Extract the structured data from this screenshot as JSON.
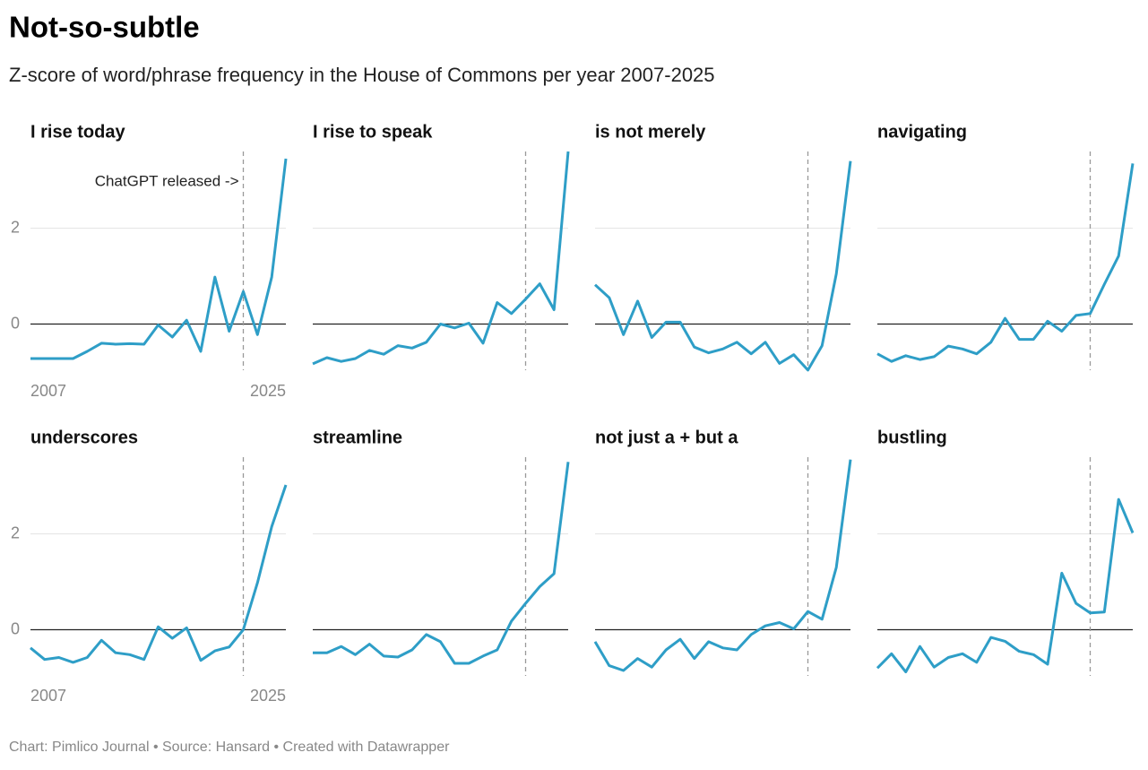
{
  "title": "Not-so-subtle",
  "subtitle": "Z-score of word/phrase frequency in the House of Commons per year 2007-2025",
  "footer": "Chart: Pimlico Journal • Source: Hansard • Created with Datawrapper",
  "chart_data": [
    {
      "type": "line",
      "title": "I rise today",
      "annotation": "ChatGPT released ->",
      "vline": 2022,
      "color": "#2e9ec7",
      "x": [
        2007,
        2008,
        2009,
        2010,
        2011,
        2012,
        2013,
        2014,
        2015,
        2016,
        2017,
        2018,
        2019,
        2020,
        2021,
        2022,
        2023,
        2024,
        2025
      ],
      "values": [
        -0.72,
        -0.72,
        -0.72,
        -0.72,
        -0.57,
        -0.4,
        -0.42,
        -0.41,
        -0.42,
        -0.02,
        -0.27,
        0.08,
        -0.57,
        0.98,
        -0.15,
        0.68,
        -0.22,
        0.98,
        3.45
      ],
      "xlim": [
        2007,
        2025
      ],
      "xticks": [
        2007,
        2025
      ],
      "ylim": [
        -1,
        3.6
      ],
      "yticks": [
        0,
        2
      ]
    },
    {
      "type": "line",
      "title": "I rise to speak",
      "vline": 2022,
      "color": "#2e9ec7",
      "x": [
        2007,
        2008,
        2009,
        2010,
        2011,
        2012,
        2013,
        2014,
        2015,
        2016,
        2017,
        2018,
        2019,
        2020,
        2021,
        2022,
        2023,
        2024,
        2025
      ],
      "values": [
        -0.83,
        -0.7,
        -0.78,
        -0.72,
        -0.55,
        -0.63,
        -0.45,
        -0.5,
        -0.38,
        0,
        -0.08,
        0.02,
        -0.4,
        0.45,
        0.22,
        0.52,
        0.84,
        0.3,
        3.6
      ],
      "xlim": [
        2007,
        2025
      ],
      "ylim": [
        -1,
        3.6
      ],
      "yticks": [
        0,
        2
      ]
    },
    {
      "type": "line",
      "title": "is not merely",
      "vline": 2022,
      "color": "#2e9ec7",
      "x": [
        2007,
        2008,
        2009,
        2010,
        2011,
        2012,
        2013,
        2014,
        2015,
        2016,
        2017,
        2018,
        2019,
        2020,
        2021,
        2022,
        2023,
        2024,
        2025
      ],
      "values": [
        0.82,
        0.55,
        -0.22,
        0.48,
        -0.28,
        0.04,
        0.04,
        -0.48,
        -0.6,
        -0.52,
        -0.38,
        -0.62,
        -0.38,
        -0.82,
        -0.64,
        -0.96,
        -0.45,
        1.05,
        3.4
      ],
      "xlim": [
        2007,
        2025
      ],
      "ylim": [
        -1,
        3.6
      ],
      "yticks": [
        0,
        2
      ]
    },
    {
      "type": "line",
      "title": "navigating",
      "vline": 2022,
      "color": "#2e9ec7",
      "x": [
        2007,
        2008,
        2009,
        2010,
        2011,
        2012,
        2013,
        2014,
        2015,
        2016,
        2017,
        2018,
        2019,
        2020,
        2021,
        2022,
        2023,
        2024,
        2025
      ],
      "values": [
        -0.62,
        -0.78,
        -0.66,
        -0.74,
        -0.68,
        -0.46,
        -0.52,
        -0.62,
        -0.38,
        0.12,
        -0.32,
        -0.32,
        0.06,
        -0.15,
        0.18,
        0.22,
        0.83,
        1.42,
        3.35
      ],
      "xlim": [
        2007,
        2025
      ],
      "ylim": [
        -1,
        3.6
      ],
      "yticks": [
        0,
        2
      ]
    },
    {
      "type": "line",
      "title": "underscores",
      "vline": 2022,
      "color": "#2e9ec7",
      "x": [
        2007,
        2008,
        2009,
        2010,
        2011,
        2012,
        2013,
        2014,
        2015,
        2016,
        2017,
        2018,
        2019,
        2020,
        2021,
        2022,
        2023,
        2024,
        2025
      ],
      "values": [
        -0.38,
        -0.62,
        -0.58,
        -0.68,
        -0.58,
        -0.22,
        -0.48,
        -0.52,
        -0.62,
        0.06,
        -0.18,
        0.04,
        -0.64,
        -0.44,
        -0.36,
        0,
        0.98,
        2.15,
        3.02
      ],
      "xlim": [
        2007,
        2025
      ],
      "xticks": [
        2007,
        2025
      ],
      "ylim": [
        -1,
        3.6
      ],
      "yticks": [
        0,
        2
      ]
    },
    {
      "type": "line",
      "title": "streamline",
      "vline": 2022,
      "color": "#2e9ec7",
      "x": [
        2007,
        2008,
        2009,
        2010,
        2011,
        2012,
        2013,
        2014,
        2015,
        2016,
        2017,
        2018,
        2019,
        2020,
        2021,
        2022,
        2023,
        2024,
        2025
      ],
      "values": [
        -0.48,
        -0.48,
        -0.35,
        -0.52,
        -0.3,
        -0.55,
        -0.57,
        -0.42,
        -0.1,
        -0.25,
        -0.7,
        -0.7,
        -0.55,
        -0.42,
        0.18,
        0.55,
        0.9,
        1.17,
        3.5
      ],
      "xlim": [
        2007,
        2025
      ],
      "ylim": [
        -1,
        3.6
      ],
      "yticks": [
        0,
        2
      ]
    },
    {
      "type": "line",
      "title": "not just a + but a",
      "vline": 2022,
      "color": "#2e9ec7",
      "x": [
        2007,
        2008,
        2009,
        2010,
        2011,
        2012,
        2013,
        2014,
        2015,
        2016,
        2017,
        2018,
        2019,
        2020,
        2021,
        2022,
        2023,
        2024,
        2025
      ],
      "values": [
        -0.25,
        -0.75,
        -0.85,
        -0.6,
        -0.78,
        -0.42,
        -0.2,
        -0.6,
        -0.25,
        -0.38,
        -0.42,
        -0.1,
        0.08,
        0.15,
        0.02,
        0.38,
        0.22,
        1.3,
        3.55
      ],
      "xlim": [
        2007,
        2025
      ],
      "ylim": [
        -1,
        3.6
      ],
      "yticks": [
        0,
        2
      ]
    },
    {
      "type": "line",
      "title": "bustling",
      "vline": 2022,
      "color": "#2e9ec7",
      "x": [
        2007,
        2008,
        2009,
        2010,
        2011,
        2012,
        2013,
        2014,
        2015,
        2016,
        2017,
        2018,
        2019,
        2020,
        2021,
        2022,
        2023,
        2024,
        2025
      ],
      "values": [
        -0.8,
        -0.5,
        -0.88,
        -0.35,
        -0.78,
        -0.58,
        -0.5,
        -0.68,
        -0.16,
        -0.24,
        -0.45,
        -0.52,
        -0.72,
        1.18,
        0.55,
        0.35,
        0.37,
        2.72,
        2.02
      ],
      "xlim": [
        2007,
        2025
      ],
      "ylim": [
        -1,
        3.6
      ],
      "yticks": [
        0,
        2
      ]
    }
  ]
}
